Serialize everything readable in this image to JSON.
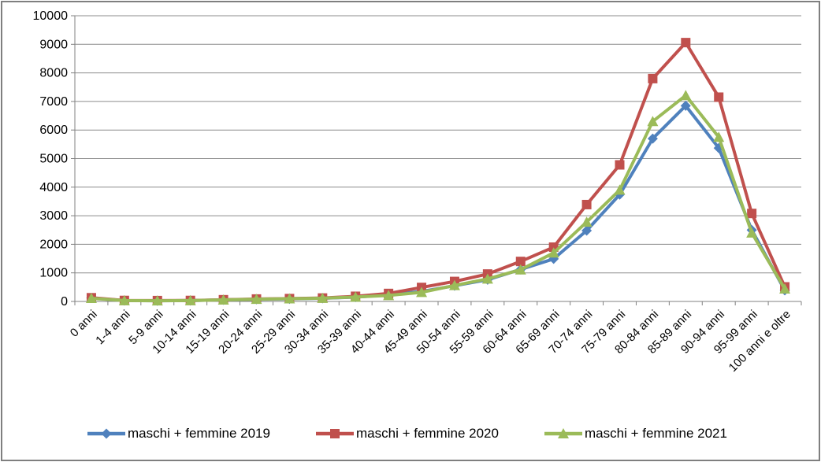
{
  "chart_data": {
    "type": "line",
    "title": "",
    "xlabel": "",
    "ylabel": "",
    "ylim": [
      0,
      10000
    ],
    "y_tick_step": 1000,
    "y_tick_labels": [
      "0",
      "1000",
      "2000",
      "3000",
      "4000",
      "5000",
      "6000",
      "7000",
      "8000",
      "9000",
      "10000"
    ],
    "grid": true,
    "legend_position": "bottom",
    "categories": [
      "0 anni",
      "1-4 anni",
      "5-9 anni",
      "10-14 anni",
      "15-19 anni",
      "20-24 anni",
      "25-29 anni",
      "30-34 anni",
      "35-39 anni",
      "40-44 anni",
      "45-49 anni",
      "50-54 anni",
      "55-59 anni",
      "60-64 anni",
      "65-69 anni",
      "70-74 anni",
      "75-79 anni",
      "80-84 anni",
      "85-89 anni",
      "90-94 anni",
      "95-99 anni",
      "100 anni e oltre"
    ],
    "series": [
      {
        "name": "maschi + femmine 2019",
        "color": "#4F81BD",
        "marker": "diamond",
        "values": [
          120,
          30,
          25,
          30,
          55,
          75,
          90,
          110,
          150,
          230,
          350,
          550,
          760,
          1120,
          1490,
          2480,
          3740,
          5700,
          6850,
          5370,
          2500,
          390
        ]
      },
      {
        "name": "maschi + femmine 2020",
        "color": "#C0504D",
        "marker": "square",
        "values": [
          130,
          35,
          30,
          35,
          60,
          85,
          100,
          120,
          180,
          280,
          490,
          700,
          960,
          1400,
          1900,
          3390,
          4780,
          7800,
          9060,
          7150,
          3080,
          510
        ]
      },
      {
        "name": "maschi + femmine 2021",
        "color": "#9BBB59",
        "marker": "triangle",
        "values": [
          110,
          30,
          25,
          30,
          55,
          80,
          95,
          115,
          155,
          210,
          320,
          560,
          790,
          1110,
          1700,
          2780,
          3900,
          6300,
          7210,
          5750,
          2400,
          440
        ]
      }
    ],
    "colors": {
      "grid": "#8C8C8C",
      "axis": "#808080",
      "text": "#000000",
      "background": "#FFFFFF",
      "frame_border": "#7F7F7F"
    }
  }
}
